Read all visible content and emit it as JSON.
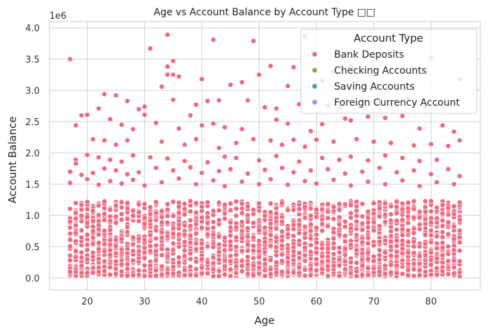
{
  "chart_data": {
    "type": "scatter",
    "title": "Age vs Account Balance by Account Type □□",
    "xlabel": "Age",
    "ylabel": "Account Balance",
    "y_scale_note": "1e6",
    "xlim": [
      13.4,
      88.6
    ],
    "ylim": [
      -190000,
      4100000
    ],
    "x_ticks": [
      20,
      30,
      40,
      50,
      60,
      70,
      80
    ],
    "y_ticks": [
      0,
      500000,
      1000000,
      1500000,
      2000000,
      2500000,
      3000000,
      3500000,
      4000000
    ],
    "y_tick_labels": [
      "0.0",
      "0.5",
      "1.0",
      "1.5",
      "2.0",
      "2.5",
      "3.0",
      "3.5",
      "4.0"
    ],
    "grid": true,
    "legend": {
      "title": "Account Type",
      "placement": "top-right",
      "entries": [
        {
          "name": "Bank Deposits",
          "color": "#f0677e"
        },
        {
          "name": "Checking Accounts",
          "color": "#96a432"
        },
        {
          "name": "Saving Accounts",
          "color": "#35ab9d"
        },
        {
          "name": "Foreign Currency Account",
          "color": "#a48cf4"
        }
      ]
    },
    "series": [
      {
        "name": "Bank Deposits",
        "color": "#f0677e",
        "x_range": [
          17,
          85
        ],
        "points": [
          [
            17,
            3500000
          ],
          [
            34,
            3890000
          ],
          [
            42,
            3810000
          ],
          [
            49,
            3790000
          ],
          [
            58,
            3860000
          ],
          [
            31,
            3670000
          ],
          [
            35,
            3470000
          ],
          [
            34,
            3380000
          ],
          [
            34,
            3250000
          ],
          [
            35,
            3250000
          ],
          [
            36,
            3220000
          ],
          [
            40,
            3180000
          ],
          [
            47,
            3130000
          ],
          [
            50,
            3250000
          ],
          [
            52,
            3390000
          ],
          [
            56,
            3370000
          ],
          [
            63,
            3300000
          ],
          [
            66,
            3370000
          ],
          [
            80,
            3520000
          ],
          [
            85,
            3180000
          ],
          [
            33,
            3060000
          ],
          [
            45,
            3090000
          ],
          [
            55,
            3070000
          ],
          [
            61,
            3150000
          ],
          [
            67,
            3120000
          ],
          [
            74,
            3090000
          ],
          [
            23,
            2940000
          ],
          [
            25,
            2920000
          ],
          [
            27,
            2830000
          ],
          [
            29,
            2700000
          ],
          [
            30,
            2740000
          ],
          [
            35,
            2850000
          ],
          [
            39,
            2770000
          ],
          [
            41,
            2830000
          ],
          [
            43,
            2840000
          ],
          [
            48,
            2840000
          ],
          [
            51,
            2730000
          ],
          [
            53,
            2710000
          ],
          [
            57,
            2780000
          ],
          [
            60,
            2810000
          ],
          [
            62,
            2760000
          ],
          [
            64,
            2730000
          ],
          [
            68,
            2840000
          ],
          [
            71,
            2820000
          ],
          [
            73,
            2770000
          ],
          [
            76,
            2870000
          ],
          [
            79,
            2750000
          ],
          [
            81,
            2760000
          ],
          [
            19,
            2600000
          ],
          [
            20,
            2610000
          ],
          [
            22,
            2710000
          ],
          [
            24,
            2540000
          ],
          [
            26,
            2450000
          ],
          [
            28,
            2380000
          ],
          [
            30,
            2610000
          ],
          [
            32,
            2480000
          ],
          [
            36,
            2390000
          ],
          [
            38,
            2600000
          ],
          [
            40,
            2440000
          ],
          [
            42,
            2470000
          ],
          [
            44,
            2410000
          ],
          [
            47,
            2380000
          ],
          [
            53,
            2530000
          ],
          [
            55,
            2470000
          ],
          [
            59,
            2350000
          ],
          [
            61,
            2460000
          ],
          [
            65,
            2550000
          ],
          [
            66,
            2520000
          ],
          [
            69,
            2580000
          ],
          [
            72,
            2560000
          ],
          [
            75,
            2590000
          ],
          [
            78,
            2390000
          ],
          [
            82,
            2440000
          ],
          [
            84,
            2340000
          ],
          [
            18,
            2440000
          ],
          [
            21,
            2220000
          ],
          [
            23,
            2200000
          ],
          [
            25,
            2130000
          ],
          [
            27,
            2200000
          ],
          [
            33,
            2180000
          ],
          [
            37,
            2130000
          ],
          [
            39,
            2220000
          ],
          [
            43,
            2080000
          ],
          [
            46,
            2160000
          ],
          [
            49,
            2220000
          ],
          [
            52,
            2200000
          ],
          [
            54,
            2130000
          ],
          [
            56,
            2210000
          ],
          [
            58,
            2100000
          ],
          [
            60,
            2210000
          ],
          [
            63,
            2180000
          ],
          [
            67,
            2220000
          ],
          [
            70,
            2180000
          ],
          [
            73,
            2160000
          ],
          [
            77,
            2120000
          ],
          [
            80,
            2140000
          ],
          [
            83,
            2110000
          ],
          [
            85,
            2200000
          ],
          [
            20,
            1970000
          ],
          [
            22,
            1930000
          ],
          [
            24,
            1890000
          ],
          [
            26,
            1860000
          ],
          [
            28,
            1960000
          ],
          [
            31,
            1930000
          ],
          [
            34,
            1910000
          ],
          [
            37,
            1870000
          ],
          [
            41,
            1850000
          ],
          [
            44,
            1940000
          ],
          [
            46,
            1920000
          ],
          [
            50,
            1880000
          ],
          [
            53,
            1950000
          ],
          [
            57,
            1860000
          ],
          [
            61,
            1920000
          ],
          [
            64,
            1890000
          ],
          [
            66,
            1940000
          ],
          [
            69,
            1880000
          ],
          [
            72,
            1960000
          ],
          [
            75,
            1920000
          ],
          [
            78,
            1870000
          ],
          [
            81,
            1890000
          ],
          [
            18,
            1890000
          ],
          [
            18,
            1830000
          ],
          [
            17,
            1700000
          ],
          [
            19,
            1650000
          ],
          [
            21,
            1680000
          ],
          [
            23,
            1750000
          ],
          [
            25,
            1720000
          ],
          [
            27,
            1660000
          ],
          [
            29,
            1690000
          ],
          [
            32,
            1760000
          ],
          [
            35,
            1720000
          ],
          [
            38,
            1770000
          ],
          [
            40,
            1680000
          ],
          [
            43,
            1710000
          ],
          [
            45,
            1740000
          ],
          [
            48,
            1670000
          ],
          [
            51,
            1730000
          ],
          [
            54,
            1760000
          ],
          [
            56,
            1690000
          ],
          [
            59,
            1720000
          ],
          [
            62,
            1740000
          ],
          [
            65,
            1670000
          ],
          [
            68,
            1700000
          ],
          [
            71,
            1760000
          ],
          [
            74,
            1690000
          ],
          [
            77,
            1720000
          ],
          [
            80,
            1660000
          ],
          [
            83,
            1740000
          ],
          [
            85,
            1630000
          ],
          [
            17,
            1520000
          ],
          [
            20,
            1580000
          ],
          [
            22,
            1490000
          ],
          [
            24,
            1550000
          ],
          [
            26,
            1510000
          ],
          [
            28,
            1570000
          ],
          [
            30,
            1480000
          ],
          [
            33,
            1530000
          ],
          [
            36,
            1590000
          ],
          [
            39,
            1500000
          ],
          [
            42,
            1560000
          ],
          [
            44,
            1470000
          ],
          [
            47,
            1540000
          ],
          [
            50,
            1500000
          ],
          [
            52,
            1580000
          ],
          [
            55,
            1490000
          ],
          [
            58,
            1550000
          ],
          [
            60,
            1510000
          ],
          [
            63,
            1570000
          ],
          [
            66,
            1480000
          ],
          [
            69,
            1540000
          ],
          [
            72,
            1500000
          ],
          [
            75,
            1560000
          ],
          [
            78,
            1470000
          ],
          [
            81,
            1530000
          ],
          [
            84,
            1500000
          ]
        ]
      },
      {
        "name": "Checking Accounts",
        "color": "#96a432",
        "points": []
      },
      {
        "name": "Saving Accounts",
        "color": "#35ab9d",
        "points": []
      },
      {
        "name": "Foreign Currency Account",
        "color": "#a48cf4",
        "points": []
      }
    ]
  }
}
